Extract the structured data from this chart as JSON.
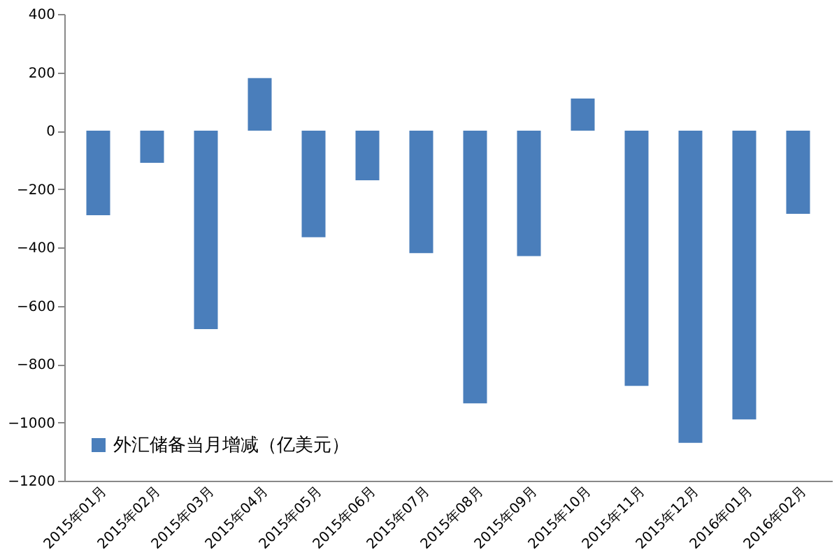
{
  "chart_data": {
    "type": "bar",
    "categories": [
      "2015年01月",
      "2015年02月",
      "2015年03月",
      "2015年04月",
      "2015年05月",
      "2015年06月",
      "2015年07月",
      "2015年08月",
      "2015年09月",
      "2015年10月",
      "2015年11月",
      "2015年12月",
      "2016年01月",
      "2016年02月"
    ],
    "series": [
      {
        "name": "外汇储备当月增减（亿美元）",
        "color": "#4a7ebb",
        "values": [
          -290,
          -110,
          -680,
          180,
          -365,
          -170,
          -420,
          -935,
          -430,
          110,
          -875,
          -1070,
          -990,
          -285
        ]
      }
    ],
    "ylim": [
      -1200,
      400
    ],
    "yticks": [
      -1200,
      -1000,
      -800,
      -600,
      -400,
      -200,
      0,
      200,
      400
    ],
    "grid": false,
    "legend": "bottom left"
  }
}
